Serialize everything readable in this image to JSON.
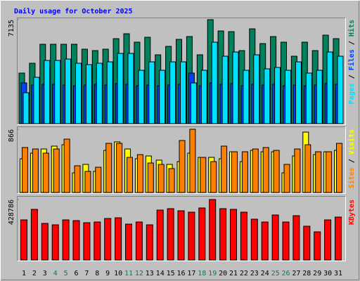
{
  "chart_data": [
    {
      "type": "bar",
      "title": "Daily usage for October 2025",
      "title_color": "#0000ff",
      "ylim": [
        0,
        7135
      ],
      "yticks": [
        7135
      ],
      "legend_separator": " / ",
      "series": [
        {
          "name": "Hits",
          "color": "#00805c",
          "values": [
            3470,
            4145,
            5447,
            5447,
            5447,
            5447,
            5110,
            5013,
            5110,
            5832,
            6170,
            5591,
            5929,
            4724,
            5302,
            5784,
            5977,
            4724,
            7135,
            6362,
            6314,
            5013,
            6507,
            5495,
            5977,
            5591,
            4627,
            5591,
            5013,
            6073,
            5832
          ]
        },
        {
          "name": "Files",
          "color": "#0040ff",
          "values": [
            2796,
            2650,
            2700,
            2700,
            2650,
            2600,
            2650,
            2700,
            2650,
            2750,
            2700,
            2600,
            2650,
            2600,
            2650,
            2700,
            3470,
            2600,
            2800,
            2700,
            2750,
            2600,
            2700,
            2650,
            2700,
            2600,
            2650,
            2600,
            2650,
            2750,
            2700
          ]
        },
        {
          "name": "Pages",
          "color": "#00e0ff",
          "values": [
            2121,
            3181,
            4338,
            4338,
            4434,
            4145,
            4049,
            4145,
            4242,
            4820,
            4820,
            3663,
            4242,
            3663,
            4242,
            4242,
            2796,
            3663,
            5591,
            4627,
            4916,
            3663,
            4724,
            3760,
            3856,
            3663,
            4242,
            3470,
            3663,
            4916,
            4627
          ]
        }
      ]
    },
    {
      "type": "bar",
      "ylim": [
        0,
        866
      ],
      "yticks": [
        866
      ],
      "legend_separator": " / ",
      "series": [
        {
          "name": "Visits",
          "color": "#ffff00",
          "values": [
            462,
            539,
            596,
            635,
            654,
            269,
            385,
            289,
            577,
            693,
            596,
            462,
            500,
            443,
            385,
            423,
            539,
            481,
            481,
            462,
            558,
            423,
            577,
            558,
            558,
            269,
            500,
            827,
            519,
            558,
            577
          ]
        },
        {
          "name": "Sites",
          "color": "#ff8000",
          "values": [
            616,
            596,
            539,
            596,
            731,
            366,
            289,
            346,
            673,
            673,
            481,
            519,
            404,
            385,
            327,
            712,
            866,
            481,
            423,
            635,
            558,
            558,
            596,
            616,
            577,
            385,
            596,
            654,
            558,
            558,
            673
          ]
        }
      ]
    },
    {
      "type": "bar",
      "ylim": [
        0,
        428786
      ],
      "yticks": [
        428786
      ],
      "series": [
        {
          "name": "KBytes",
          "color": "#ff0000",
          "values": [
            284202,
            358992,
            259272,
            249300,
            284202,
            279216,
            264258,
            269244,
            294174,
            299160,
            254286,
            269244,
            249300,
            354006,
            363978,
            349020,
            339048,
            368964,
            428786,
            363978,
            358992,
            339048,
            289188,
            269244,
            319104,
            269244,
            314118,
            239328,
            199440,
            284202,
            304146
          ]
        }
      ],
      "categories": [
        "1",
        "2",
        "3",
        "4",
        "5",
        "6",
        "7",
        "8",
        "9",
        "10",
        "11",
        "12",
        "13",
        "14",
        "15",
        "16",
        "17",
        "18",
        "19",
        "20",
        "21",
        "22",
        "23",
        "24",
        "25",
        "26",
        "27",
        "28",
        "29",
        "30",
        "31"
      ],
      "category_colors": [
        "#000000",
        "#000000",
        "#000000",
        "#00805c",
        "#00805c",
        "#000000",
        "#000000",
        "#000000",
        "#000000",
        "#000000",
        "#00805c",
        "#00805c",
        "#000000",
        "#000000",
        "#000000",
        "#000000",
        "#000000",
        "#00805c",
        "#00805c",
        "#000000",
        "#000000",
        "#000000",
        "#000000",
        "#000000",
        "#00805c",
        "#00805c",
        "#000000",
        "#000000",
        "#000000",
        "#000000",
        "#000000"
      ]
    }
  ]
}
